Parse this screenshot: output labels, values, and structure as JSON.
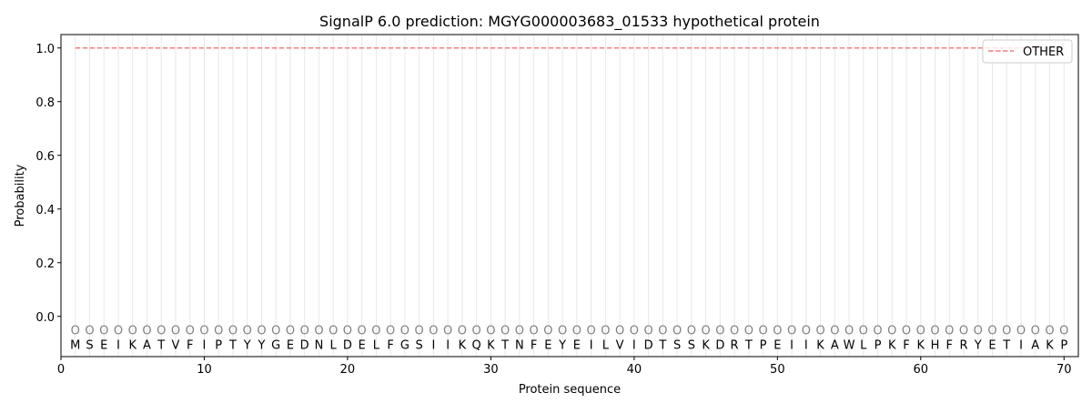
{
  "chart_data": {
    "type": "line",
    "title": "SignalP 6.0 prediction: MGYG000003683_01533 hypothetical protein",
    "xlabel": "Protein sequence",
    "ylabel": "Probability",
    "xlim": [
      0,
      71
    ],
    "ylim": [
      -0.15,
      1.05
    ],
    "xticks": [
      0,
      10,
      20,
      30,
      40,
      50,
      60,
      70
    ],
    "yticks": [
      0.0,
      0.2,
      0.4,
      0.6,
      0.8,
      1.0
    ],
    "ytick_labels": [
      "0.0",
      "0.2",
      "0.4",
      "0.6",
      "0.8",
      "1.0"
    ],
    "grid": "vertical lines at each residue",
    "legend_placement": "top-right",
    "sequence": [
      "M",
      "S",
      "E",
      "I",
      "K",
      "A",
      "T",
      "V",
      "F",
      "I",
      "P",
      "T",
      "Y",
      "Y",
      "G",
      "E",
      "D",
      "N",
      "L",
      "D",
      "E",
      "L",
      "F",
      "G",
      "S",
      "I",
      "I",
      "K",
      "Q",
      "K",
      "T",
      "N",
      "F",
      "E",
      "Y",
      "E",
      "I",
      "L",
      "V",
      "I",
      "D",
      "T",
      "S",
      "S",
      "K",
      "D",
      "R",
      "T",
      "P",
      "E",
      "I",
      "I",
      "K",
      "A",
      "W",
      "L",
      "P",
      "K",
      "F",
      "K",
      "H",
      "F",
      "R",
      "Y",
      "E",
      "T",
      "I",
      "A",
      "K",
      "P"
    ],
    "predicted_label": "O",
    "series": [
      {
        "name": "OTHER",
        "color": "#f08080",
        "style": "dashed",
        "x_range": [
          1,
          70
        ],
        "value": 1.0
      }
    ]
  }
}
